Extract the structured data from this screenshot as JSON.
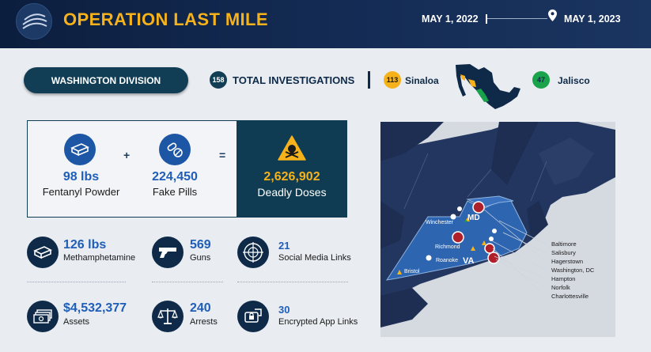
{
  "header": {
    "title": "OPERATION LAST MILE",
    "start_date": "MAY 1, 2022",
    "end_date": "MAY 1, 2023"
  },
  "division": {
    "label": "WASHINGTON DIVISION"
  },
  "investigations": {
    "total_count": "158",
    "total_label": "TOTAL INVESTIGATIONS",
    "sinaloa_count": "113",
    "sinaloa_label": "Sinaloa",
    "jalisco_count": "47",
    "jalisco_label": "Jalisco"
  },
  "equation": {
    "fentanyl_value": "98 lbs",
    "fentanyl_label": "Fentanyl Powder",
    "plus": "+",
    "pills_value": "224,450",
    "pills_label": "Fake Pills",
    "equals": "=",
    "doses_value": "2,626,902",
    "doses_label": "Deadly Doses"
  },
  "stats": {
    "meth_value": "126 lbs",
    "meth_label": "Methamphetamine",
    "guns_value": "569",
    "guns_label": "Guns",
    "social_value": "21",
    "social_label": "Social Media Links",
    "assets_value": "$4,532,377",
    "assets_label": "Assets",
    "arrests_value": "240",
    "arrests_label": "Arrests",
    "apps_value": "30",
    "apps_label": "Encrypted App Links"
  },
  "map": {
    "state_md": "MD",
    "state_va": "VA",
    "winchester": "Winchester",
    "richmond": "Richmond",
    "roanoke": "Roanoke",
    "bristol": "Bristol",
    "cities": [
      "Baltimore",
      "Salisbury",
      "Hagerstown",
      "Washington, DC",
      "Hampton",
      "Norfolk",
      "Charlottesville"
    ]
  },
  "colors": {
    "header_bg": "#0c1e3e",
    "title_gold": "#f6b21a",
    "accent_blue": "#1e5eb8",
    "dark_teal": "#0f3c52",
    "sinaloa_badge": "#f6b21a",
    "jalisco_badge": "#19a34a",
    "marker_red": "#b0202a"
  }
}
